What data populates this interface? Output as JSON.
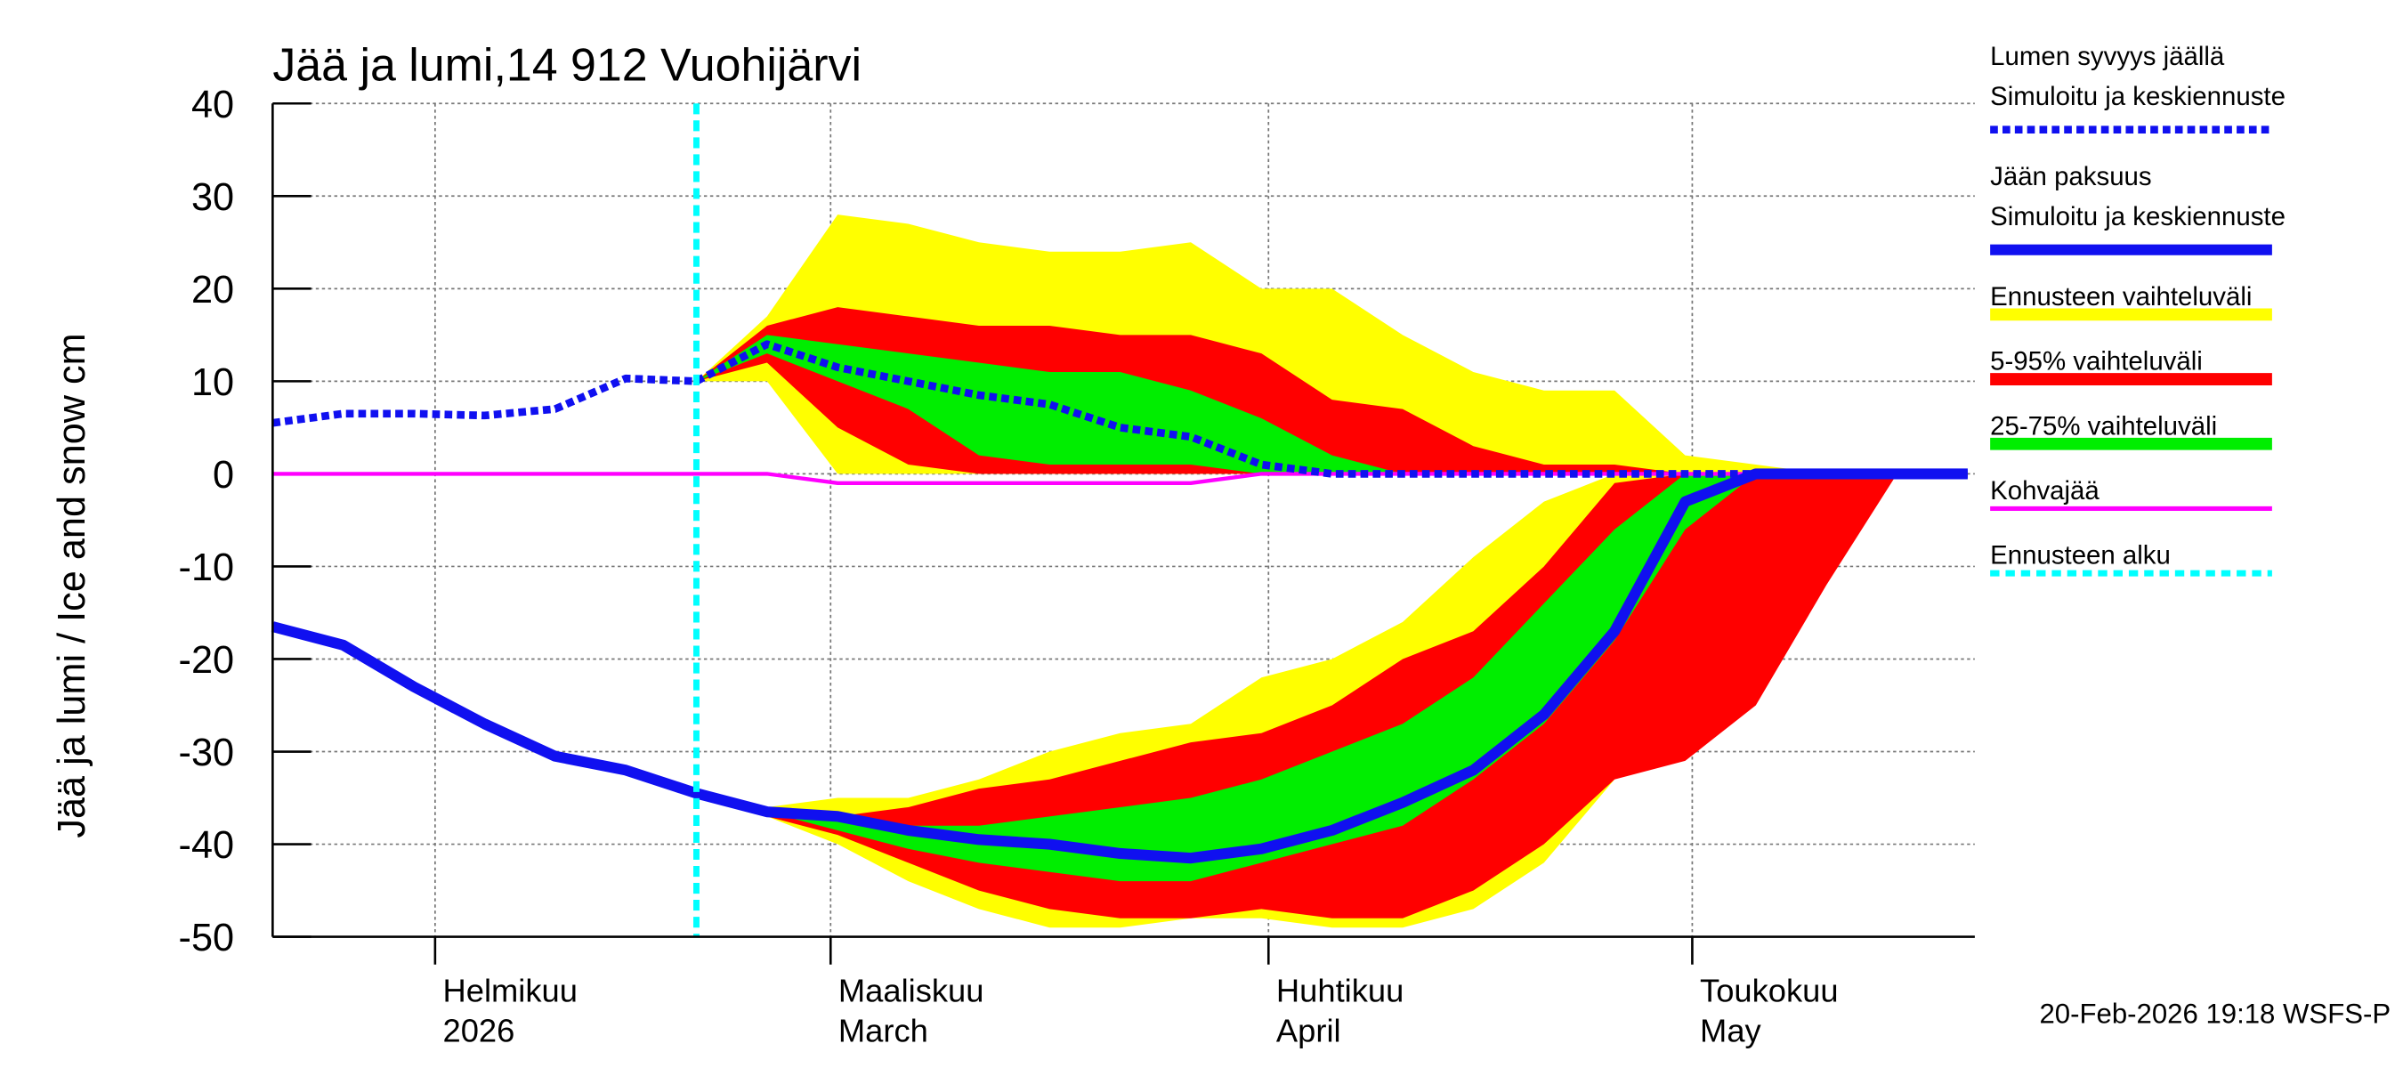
{
  "chart_data": {
    "type": "line",
    "title": "Jää ja lumi,14 912 Vuohijärvi",
    "ylabel": "Jää ja lumi / Ice and snow    cm",
    "footer": "20-Feb-2026 19:18 WSFS-P",
    "xlim": [
      0,
      120.5
    ],
    "ylim": [
      -50,
      40
    ],
    "yticks": [
      -50,
      -40,
      -30,
      -20,
      -10,
      0,
      10,
      20,
      30,
      40
    ],
    "xticks": [
      {
        "value": 11.5,
        "label": [
          "Helmikuu",
          "2026"
        ]
      },
      {
        "value": 39.5,
        "label": [
          "Maaliskuu",
          "March"
        ]
      },
      {
        "value": 70.5,
        "label": [
          "Huhtikuu",
          "April"
        ]
      },
      {
        "value": 100.5,
        "label": [
          "Toukokuu",
          "May"
        ]
      }
    ],
    "grid": true,
    "x": [
      0,
      5,
      10,
      15,
      20,
      25,
      30,
      35,
      40,
      45,
      50,
      55,
      60,
      65,
      70,
      75,
      80,
      85,
      90,
      95,
      100,
      105,
      110,
      115,
      120
    ],
    "series": [
      {
        "name": [
          "Lumen syvyys jäällä",
          "Simuloitu ja keskiennuste"
        ],
        "color": "#1010f0",
        "style": "dotted",
        "values": [
          5.5,
          6.5,
          6.5,
          6.3,
          7,
          10.3,
          10,
          14,
          11.5,
          10,
          8.5,
          7.5,
          5,
          4,
          1,
          0,
          0,
          0,
          0,
          0,
          0,
          0,
          0,
          0,
          0
        ]
      },
      {
        "name": [
          "Jään paksuus",
          "Simuloitu ja keskiennuste"
        ],
        "color": "#1010f0",
        "style": "solid",
        "values": [
          -16.5,
          -18.5,
          -23,
          -27,
          -30.5,
          -32,
          -34.5,
          -36.5,
          -37,
          -38.5,
          -39.5,
          -40,
          -41,
          -41.5,
          -40.5,
          -38.5,
          -35.5,
          -32,
          -26,
          -17,
          -3,
          0,
          0,
          0,
          0
        ]
      },
      {
        "name": "Kohvajää",
        "color": "#ff00ff",
        "style": "thin",
        "values": [
          0,
          0,
          0,
          0,
          0,
          0,
          0,
          0,
          -1,
          -1,
          -1,
          -1,
          -1,
          -1,
          0,
          0,
          0,
          0,
          0,
          0,
          0,
          0,
          0,
          0,
          0
        ]
      }
    ],
    "bands": [
      {
        "name": "Ennusteen vaihteluväli",
        "color": "#ffff00",
        "snow_high": [
          null,
          null,
          null,
          null,
          null,
          null,
          10,
          17,
          28,
          27,
          25,
          24,
          24,
          25,
          20,
          20,
          15,
          11,
          9,
          9,
          2,
          1,
          0,
          0,
          0
        ],
        "snow_low": [
          null,
          null,
          null,
          null,
          null,
          null,
          10,
          10,
          0,
          0,
          0,
          0,
          0,
          0,
          0,
          0,
          0,
          0,
          0,
          0,
          0,
          0,
          0,
          0,
          0
        ],
        "ice_high": [
          null,
          null,
          null,
          null,
          null,
          null,
          -35,
          -36,
          -35,
          -35,
          -33,
          -30,
          -28,
          -27,
          -22,
          -20,
          -16,
          -9,
          -3,
          0,
          0,
          0,
          0,
          0,
          0
        ],
        "ice_low": [
          null,
          null,
          null,
          null,
          null,
          null,
          -35,
          -37,
          -40,
          -44,
          -47,
          -49,
          -49,
          -48,
          -48,
          -49,
          -49,
          -47,
          -42,
          -33,
          -25,
          -15,
          -5,
          0,
          0
        ]
      },
      {
        "name": "5-95% vaihteluväli",
        "color": "#ff0000",
        "snow_high": [
          null,
          null,
          null,
          null,
          null,
          null,
          10,
          16,
          18,
          17,
          16,
          16,
          15,
          15,
          13,
          8,
          7,
          3,
          1,
          1,
          0,
          0,
          0,
          0,
          0
        ],
        "snow_low": [
          null,
          null,
          null,
          null,
          null,
          null,
          10,
          12,
          5,
          1,
          0,
          0,
          0,
          0,
          0,
          0,
          0,
          0,
          0,
          0,
          0,
          0,
          0,
          0,
          0
        ],
        "ice_high": [
          null,
          null,
          null,
          null,
          null,
          null,
          -35,
          -36.5,
          -37,
          -36,
          -34,
          -33,
          -31,
          -29,
          -28,
          -25,
          -20,
          -17,
          -10,
          -1,
          0,
          0,
          0,
          0,
          0
        ],
        "ice_low": [
          null,
          null,
          null,
          null,
          null,
          null,
          -35,
          -37,
          -39,
          -42,
          -45,
          -47,
          -48,
          -48,
          -47,
          -48,
          -48,
          -45,
          -40,
          -33,
          -31,
          -25,
          -12,
          0,
          0
        ]
      },
      {
        "name": "25-75% vaihteluväli",
        "color": "#00ee00",
        "snow_high": [
          null,
          null,
          null,
          null,
          null,
          null,
          10,
          15,
          14,
          13,
          12,
          11,
          11,
          9,
          6,
          2,
          0,
          0,
          0,
          0,
          0,
          0,
          0,
          0,
          0
        ],
        "snow_low": [
          null,
          null,
          null,
          null,
          null,
          null,
          10,
          13,
          10,
          7,
          2,
          1,
          1,
          1,
          0,
          0,
          0,
          0,
          0,
          0,
          0,
          0,
          0,
          0,
          0
        ],
        "ice_high": [
          null,
          null,
          null,
          null,
          null,
          null,
          -35,
          -36.5,
          -37,
          -38,
          -38,
          -37,
          -36,
          -35,
          -33,
          -30,
          -27,
          -22,
          -14,
          -6,
          0,
          0,
          0,
          0,
          0
        ],
        "ice_low": [
          null,
          null,
          null,
          null,
          null,
          null,
          -35,
          -36.5,
          -38.5,
          -40.5,
          -42,
          -43,
          -44,
          -44,
          -42,
          -40,
          -38,
          -33,
          -27,
          -18,
          -6,
          0,
          0,
          0,
          0
        ]
      }
    ],
    "forecast_start": {
      "name": "Ennusteen alku",
      "color": "#00ffff",
      "x": 30
    }
  }
}
